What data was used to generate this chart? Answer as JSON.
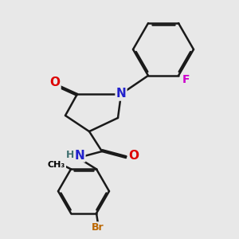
{
  "bg": "#e8e8e8",
  "atom_colors": {
    "C": "#000000",
    "N": "#2222cc",
    "O": "#dd0000",
    "F": "#cc00cc",
    "Br": "#bb6600",
    "H": "#407070",
    "NH": "#2222cc"
  },
  "bond_color": "#1a1a1a",
  "bond_width": 1.8,
  "dbo": 0.018,
  "figsize": [
    3.0,
    3.0
  ],
  "dpi": 100,
  "xlim": [
    0,
    3.0
  ],
  "ylim": [
    0,
    3.0
  ]
}
